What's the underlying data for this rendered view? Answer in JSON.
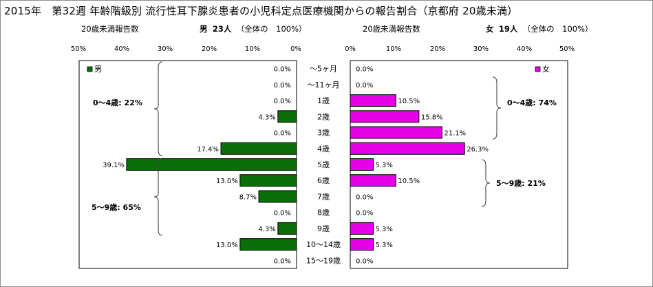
{
  "title": "2015年　第32週 年齢階級別 流行性耳下腺炎患者の小児科定点医療機関からの報告割合（京都府 20歳未満）",
  "male_header": {
    "left": "20歳未満報告数",
    "sex": "男",
    "count": "23人",
    "paren": "（全体の　100%）"
  },
  "female_header": {
    "left": "20歳未満報告数",
    "sex": "女",
    "count": "19人",
    "paren": "（全体の　100%）"
  },
  "colors": {
    "male": "#0a6e0a",
    "female": "#e600e6",
    "axis": "#000000",
    "grid": "#d0d0d0"
  },
  "chart_data": [
    {
      "type": "bar",
      "orientation": "horizontal-left",
      "series": [
        {
          "name": "男",
          "values": [
            0.0,
            0.0,
            0.0,
            4.3,
            0.0,
            17.4,
            39.1,
            13.0,
            8.7,
            0.0,
            4.3,
            13.0,
            0.0
          ]
        }
      ],
      "value_labels": [
        "0.0%",
        "0.0%",
        "0.0%",
        "4.3%",
        "0.0%",
        "17.4%",
        "39.1%",
        "13.0%",
        "8.7%",
        "0.0%",
        "4.3%",
        "13.0%",
        "0.0%"
      ],
      "xlim": [
        50,
        0
      ],
      "ticks": [
        "50%",
        "40%",
        "30%",
        "20%",
        "10%",
        "0%"
      ],
      "legend_position": "top-left",
      "group_annotations": [
        "0～4歳: 22%",
        "5～9歳: 65%"
      ]
    },
    {
      "type": "bar",
      "orientation": "horizontal-right",
      "series": [
        {
          "name": "女",
          "values": [
            0.0,
            0.0,
            10.5,
            15.8,
            21.1,
            26.3,
            5.3,
            10.5,
            0.0,
            0.0,
            5.3,
            5.3,
            0.0
          ]
        }
      ],
      "value_labels": [
        "0.0%",
        "0.0%",
        "10.5%",
        "15.8%",
        "21.1%",
        "26.3%",
        "5.3%",
        "10.5%",
        "0.0%",
        "0.0%",
        "5.3%",
        "5.3%",
        "0.0%"
      ],
      "xlim": [
        0,
        50
      ],
      "ticks": [
        "0%",
        "10%",
        "20%",
        "30%",
        "40%",
        "50%"
      ],
      "legend_position": "top-right",
      "group_annotations": [
        "0～4歳: 74%",
        "5～9歳: 21%"
      ]
    }
  ],
  "categories": [
    "～5ヶ月",
    "～11ヶ月",
    "1歳",
    "2歳",
    "3歳",
    "4歳",
    "5歳",
    "6歳",
    "7歳",
    "8歳",
    "9歳",
    "10～14歳",
    "15～19歳"
  ]
}
